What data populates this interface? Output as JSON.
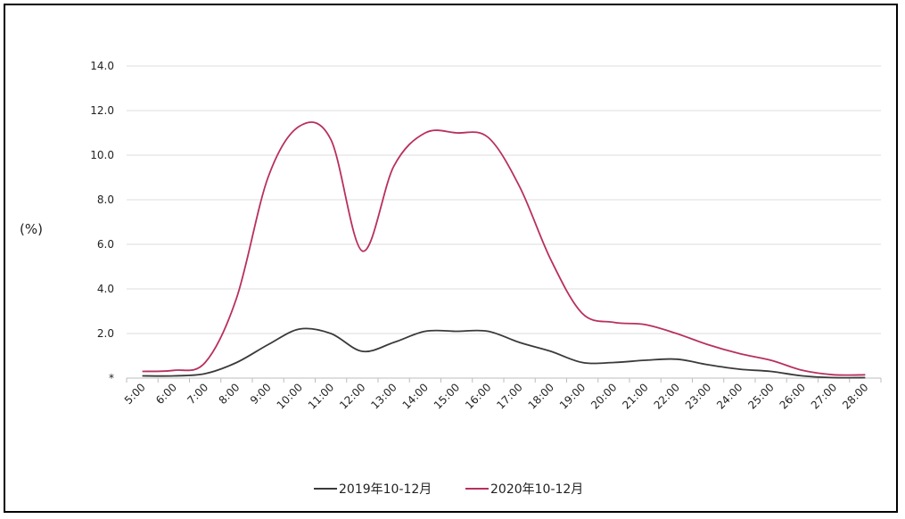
{
  "chart_data": {
    "type": "line",
    "ylabel": "(%)",
    "ylim": [
      0,
      14
    ],
    "y_ticks": [
      {
        "value": 0,
        "label": "*"
      },
      {
        "value": 2,
        "label": "2.0"
      },
      {
        "value": 4,
        "label": "4.0"
      },
      {
        "value": 6,
        "label": "6.0"
      },
      {
        "value": 8,
        "label": "8.0"
      },
      {
        "value": 10,
        "label": "10.0"
      },
      {
        "value": 12,
        "label": "12.0"
      },
      {
        "value": 14,
        "label": "14.0"
      }
    ],
    "grid": true,
    "legend_position": "bottom",
    "categories": [
      "5:00",
      "6:00",
      "7:00",
      "8:00",
      "9:00",
      "10:00",
      "11:00",
      "12:00",
      "13:00",
      "14:00",
      "15:00",
      "16:00",
      "17:00",
      "18:00",
      "19:00",
      "20:00",
      "21:00",
      "22:00",
      "23:00",
      "24:00",
      "25:00",
      "26:00",
      "27:00",
      "28:00"
    ],
    "series": [
      {
        "name": "2019年10-12月",
        "color": "#3a3a3a",
        "values": [
          0.1,
          0.1,
          0.2,
          0.7,
          1.5,
          2.2,
          2.0,
          1.2,
          1.6,
          2.1,
          2.1,
          2.1,
          1.6,
          1.2,
          0.7,
          0.7,
          0.8,
          0.85,
          0.6,
          0.4,
          0.3,
          0.1,
          0.02,
          0.02
        ]
      },
      {
        "name": "2020年10-12月",
        "color": "#b8305c",
        "values": [
          0.3,
          0.35,
          0.7,
          3.6,
          9.0,
          11.3,
          10.7,
          5.7,
          9.5,
          11.0,
          11.0,
          10.8,
          8.6,
          5.3,
          2.9,
          2.5,
          2.4,
          2.0,
          1.5,
          1.1,
          0.8,
          0.35,
          0.15,
          0.15
        ]
      }
    ]
  }
}
